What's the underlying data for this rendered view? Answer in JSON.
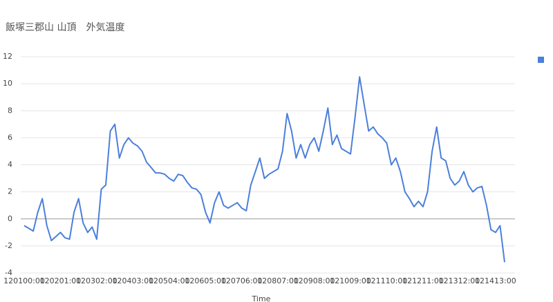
{
  "chart_data": {
    "type": "line",
    "title": "飯塚三郡山 山頂　外気温度",
    "x_label": "Time",
    "categories": [
      "120100:00",
      null,
      null,
      null,
      null,
      null,
      null,
      null,
      "120201:00",
      null,
      null,
      null,
      null,
      null,
      null,
      null,
      "120302:00",
      null,
      null,
      null,
      null,
      null,
      null,
      null,
      "120403:00",
      null,
      null,
      null,
      null,
      null,
      null,
      null,
      "120504:00",
      null,
      null,
      null,
      null,
      null,
      null,
      null,
      "120605:00",
      null,
      null,
      null,
      null,
      null,
      null,
      null,
      "120706:00",
      null,
      null,
      null,
      null,
      null,
      null,
      null,
      "120807:00",
      null,
      null,
      null,
      null,
      null,
      null,
      null,
      "120908:00",
      null,
      null,
      null,
      null,
      null,
      null,
      null,
      "121009:00",
      null,
      null,
      null,
      null,
      null,
      null,
      null,
      "121110:00",
      null,
      null,
      null,
      null,
      null,
      null,
      null,
      "121211:00",
      null,
      null,
      null,
      null,
      null,
      null,
      null,
      "121312:00",
      null,
      null,
      null,
      null,
      null,
      null,
      null,
      "121413:00",
      null,
      null
    ],
    "series": [
      {
        "color": "#4a7fdc",
        "values": [
          -0.5,
          -0.7,
          -0.9,
          0.5,
          1.5,
          -0.5,
          -1.6,
          -1.3,
          -1.0,
          -1.4,
          -1.5,
          0.5,
          1.5,
          -0.3,
          -1.0,
          -0.6,
          -1.5,
          2.2,
          2.5,
          6.5,
          7.0,
          4.5,
          5.5,
          6.0,
          5.6,
          5.4,
          5.0,
          4.2,
          3.8,
          3.4,
          3.4,
          3.3,
          3.0,
          2.8,
          3.3,
          3.2,
          2.7,
          2.3,
          2.2,
          1.8,
          0.5,
          -0.3,
          1.2,
          2.0,
          1.0,
          0.8,
          1.0,
          1.2,
          0.8,
          0.6,
          2.5,
          3.5,
          4.5,
          3.0,
          3.3,
          3.5,
          3.7,
          5.0,
          7.8,
          6.5,
          4.5,
          5.5,
          4.5,
          5.5,
          6.0,
          5.0,
          6.5,
          8.2,
          5.5,
          6.2,
          5.2,
          5.0,
          4.8,
          7.5,
          10.5,
          8.5,
          6.5,
          6.8,
          6.3,
          6.0,
          5.6,
          4.0,
          4.5,
          3.5,
          2.0,
          1.5,
          0.9,
          1.3,
          0.9,
          2.0,
          5.0,
          6.8,
          4.5,
          4.3,
          3.0,
          2.5,
          2.8,
          3.5,
          2.5,
          2.0,
          2.3,
          2.4,
          1.0,
          -0.8,
          -1.0,
          -0.5,
          -3.2
        ]
      }
    ],
    "ylim": [
      -4,
      12
    ],
    "yticks": [
      -4,
      -2,
      0,
      2,
      4,
      6,
      8,
      10,
      12
    ],
    "grid": true
  }
}
